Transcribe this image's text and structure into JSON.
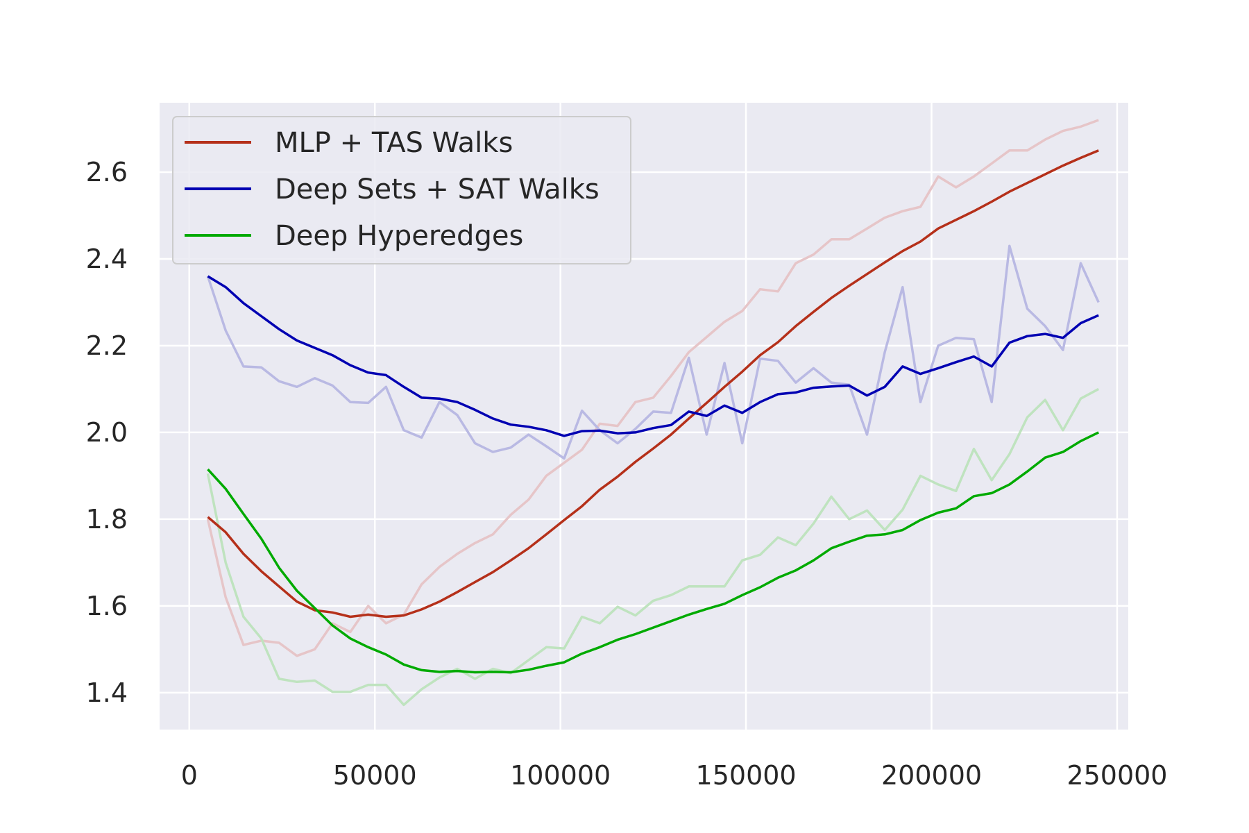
{
  "chart_data": {
    "type": "line",
    "title": "",
    "xlabel": "",
    "ylabel": "",
    "xlim": [
      -8000,
      253000
    ],
    "ylim": [
      1.315,
      2.76
    ],
    "x_ticks": [
      0,
      50000,
      100000,
      150000,
      200000,
      250000
    ],
    "x_tick_labels": [
      "0",
      "50000",
      "100000",
      "150000",
      "200000",
      "250000"
    ],
    "y_ticks": [
      1.4,
      1.6,
      1.8,
      2.0,
      2.2,
      2.4,
      2.6
    ],
    "y_tick_labels": [
      "1.4",
      "1.6",
      "1.8",
      "2.0",
      "2.2",
      "2.4",
      "2.6"
    ],
    "grid": true,
    "background": "#eaeaf2",
    "legend_position": "top-left",
    "x": [
      5000,
      9800,
      14600,
      19400,
      24200,
      29000,
      33800,
      38600,
      43400,
      48200,
      53000,
      57800,
      62600,
      67400,
      72200,
      77000,
      81800,
      86600,
      91400,
      96200,
      101000,
      105800,
      110600,
      115400,
      120200,
      125000,
      129800,
      134600,
      139400,
      144200,
      149000,
      153800,
      158600,
      163400,
      168200,
      173000,
      177800,
      182600,
      187400,
      192200,
      197000,
      201800,
      206600,
      211400,
      216200,
      221000,
      225800,
      230600,
      235400,
      240200,
      245000
    ],
    "series": [
      {
        "name": "MLP + TAS Walks",
        "color": "#b5301a",
        "raw_color": "#e6c5c8",
        "raw": [
          1.8,
          1.62,
          1.51,
          1.52,
          1.515,
          1.485,
          1.5,
          1.56,
          1.54,
          1.6,
          1.56,
          1.58,
          1.65,
          1.69,
          1.72,
          1.745,
          1.765,
          1.81,
          1.845,
          1.9,
          1.93,
          1.96,
          2.02,
          2.015,
          2.07,
          2.08,
          2.13,
          2.185,
          2.22,
          2.255,
          2.28,
          2.33,
          2.325,
          2.39,
          2.41,
          2.445,
          2.445,
          2.47,
          2.495,
          2.51,
          2.52,
          2.59,
          2.565,
          2.59,
          2.62,
          2.65,
          2.65,
          2.675,
          2.695,
          2.705,
          2.72
        ],
        "smoothed": [
          1.805,
          1.77,
          1.72,
          1.68,
          1.645,
          1.61,
          1.59,
          1.585,
          1.575,
          1.58,
          1.575,
          1.578,
          1.592,
          1.61,
          1.632,
          1.655,
          1.678,
          1.705,
          1.733,
          1.765,
          1.798,
          1.83,
          1.868,
          1.898,
          1.932,
          1.963,
          1.995,
          2.032,
          2.068,
          2.105,
          2.14,
          2.178,
          2.208,
          2.245,
          2.278,
          2.31,
          2.338,
          2.365,
          2.392,
          2.418,
          2.44,
          2.47,
          2.49,
          2.51,
          2.532,
          2.555,
          2.575,
          2.595,
          2.615,
          2.633,
          2.65
        ]
      },
      {
        "name": "Deep Sets + SAT Walks",
        "color": "#0000b2",
        "raw_color": "#b9b9e3",
        "raw": [
          2.36,
          2.235,
          2.152,
          2.15,
          2.118,
          2.105,
          2.125,
          2.108,
          2.07,
          2.068,
          2.105,
          2.005,
          1.988,
          2.07,
          2.04,
          1.975,
          1.955,
          1.965,
          1.995,
          1.968,
          1.94,
          2.05,
          2.005,
          1.975,
          2.008,
          2.048,
          2.045,
          2.172,
          1.995,
          2.16,
          1.975,
          2.17,
          2.165,
          2.115,
          2.148,
          2.115,
          2.11,
          1.995,
          2.185,
          2.335,
          2.07,
          2.2,
          2.218,
          2.215,
          2.07,
          2.43,
          2.285,
          2.245,
          2.19,
          2.39,
          2.3
        ],
        "smoothed": [
          2.36,
          2.335,
          2.298,
          2.268,
          2.238,
          2.212,
          2.195,
          2.178,
          2.155,
          2.138,
          2.132,
          2.105,
          2.08,
          2.078,
          2.07,
          2.052,
          2.032,
          2.018,
          2.013,
          2.005,
          1.992,
          2.003,
          2.004,
          1.998,
          2.0,
          2.01,
          2.017,
          2.048,
          2.038,
          2.062,
          2.045,
          2.07,
          2.088,
          2.092,
          2.103,
          2.106,
          2.108,
          2.085,
          2.105,
          2.152,
          2.135,
          2.148,
          2.162,
          2.175,
          2.152,
          2.207,
          2.222,
          2.227,
          2.218,
          2.252,
          2.27
        ]
      },
      {
        "name": "Deep Hyperedges",
        "color": "#00aa00",
        "raw_color": "#bfe3bf",
        "raw": [
          1.905,
          1.7,
          1.575,
          1.525,
          1.432,
          1.425,
          1.428,
          1.402,
          1.402,
          1.418,
          1.418,
          1.372,
          1.408,
          1.435,
          1.455,
          1.432,
          1.455,
          1.445,
          1.475,
          1.505,
          1.502,
          1.575,
          1.56,
          1.598,
          1.578,
          1.612,
          1.625,
          1.645,
          1.645,
          1.645,
          1.705,
          1.718,
          1.758,
          1.74,
          1.79,
          1.852,
          1.8,
          1.82,
          1.775,
          1.822,
          1.9,
          1.88,
          1.865,
          1.962,
          1.89,
          1.95,
          2.035,
          2.075,
          2.005,
          2.078,
          2.1
        ],
        "smoothed": [
          1.915,
          1.87,
          1.812,
          1.755,
          1.688,
          1.635,
          1.595,
          1.555,
          1.525,
          1.505,
          1.488,
          1.465,
          1.452,
          1.448,
          1.45,
          1.447,
          1.448,
          1.447,
          1.453,
          1.462,
          1.47,
          1.49,
          1.505,
          1.522,
          1.535,
          1.55,
          1.565,
          1.58,
          1.593,
          1.605,
          1.625,
          1.643,
          1.665,
          1.682,
          1.705,
          1.733,
          1.748,
          1.762,
          1.765,
          1.775,
          1.798,
          1.815,
          1.825,
          1.853,
          1.86,
          1.88,
          1.91,
          1.942,
          1.955,
          1.98,
          2.0
        ]
      }
    ]
  }
}
